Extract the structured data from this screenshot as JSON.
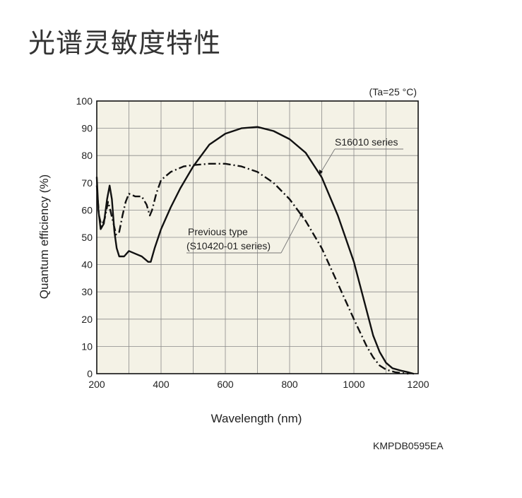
{
  "page": {
    "title": "光谱灵敏度特性",
    "document_code": "KMPDB0595EA"
  },
  "chart_data": {
    "type": "line",
    "title": "",
    "condition": "(Ta=25 °C)",
    "xlabel": "Wavelength (nm)",
    "ylabel": "Quantum efficiency (%)",
    "xlim": [
      200,
      1200
    ],
    "ylim": [
      0,
      100
    ],
    "xticks": [
      200,
      400,
      600,
      800,
      1000,
      1200
    ],
    "yticks": [
      0,
      10,
      20,
      30,
      40,
      50,
      60,
      70,
      80,
      90,
      100
    ],
    "grid": true,
    "plot_background": "#f4f2e6",
    "series": [
      {
        "name": "S16010 series",
        "style": "solid",
        "color": "#111111",
        "points": [
          [
            200,
            72
          ],
          [
            205,
            60
          ],
          [
            212,
            53
          ],
          [
            222,
            55
          ],
          [
            232,
            64
          ],
          [
            240,
            69
          ],
          [
            247,
            64
          ],
          [
            255,
            52
          ],
          [
            262,
            46
          ],
          [
            270,
            43
          ],
          [
            285,
            43
          ],
          [
            300,
            45
          ],
          [
            320,
            44
          ],
          [
            340,
            43
          ],
          [
            360,
            41
          ],
          [
            368,
            41
          ],
          [
            380,
            46
          ],
          [
            400,
            53
          ],
          [
            430,
            61
          ],
          [
            460,
            68
          ],
          [
            500,
            76
          ],
          [
            550,
            84
          ],
          [
            600,
            88
          ],
          [
            650,
            90
          ],
          [
            700,
            90.5
          ],
          [
            750,
            89
          ],
          [
            800,
            86
          ],
          [
            850,
            81
          ],
          [
            900,
            72
          ],
          [
            950,
            58
          ],
          [
            1000,
            41
          ],
          [
            1040,
            23
          ],
          [
            1060,
            14
          ],
          [
            1080,
            8
          ],
          [
            1100,
            4
          ],
          [
            1120,
            2
          ],
          [
            1150,
            1
          ],
          [
            1170,
            0.5
          ],
          [
            1185,
            0
          ]
        ]
      },
      {
        "name": "Previous type\n(S10420-01 series)",
        "style": "dash-dot",
        "color": "#111111",
        "points": [
          [
            200,
            69
          ],
          [
            207,
            58
          ],
          [
            215,
            54
          ],
          [
            225,
            57
          ],
          [
            235,
            63
          ],
          [
            242,
            60
          ],
          [
            250,
            56
          ],
          [
            260,
            51
          ],
          [
            270,
            52
          ],
          [
            280,
            58
          ],
          [
            290,
            63
          ],
          [
            300,
            66
          ],
          [
            320,
            65
          ],
          [
            340,
            65
          ],
          [
            355,
            62
          ],
          [
            365,
            58
          ],
          [
            372,
            60
          ],
          [
            385,
            66
          ],
          [
            400,
            71
          ],
          [
            430,
            74
          ],
          [
            470,
            76
          ],
          [
            500,
            76.5
          ],
          [
            550,
            77
          ],
          [
            600,
            77
          ],
          [
            650,
            76
          ],
          [
            700,
            74
          ],
          [
            750,
            70
          ],
          [
            800,
            64
          ],
          [
            850,
            56
          ],
          [
            900,
            46
          ],
          [
            950,
            33
          ],
          [
            1000,
            20
          ],
          [
            1040,
            10
          ],
          [
            1060,
            6
          ],
          [
            1080,
            3
          ],
          [
            1100,
            1.5
          ],
          [
            1130,
            0.5
          ],
          [
            1170,
            0
          ]
        ]
      }
    ],
    "annotations": [
      {
        "text": "S16010 series",
        "series": 0
      },
      {
        "text": "Previous type",
        "series": 1,
        "line": 1
      },
      {
        "text": "(S10420-01 series)",
        "series": 1,
        "line": 2
      }
    ]
  }
}
